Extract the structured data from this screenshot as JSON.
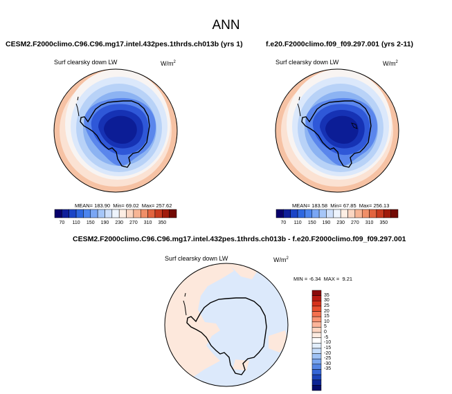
{
  "title": "ANN",
  "panels": [
    {
      "case": "CESM2.F2000climo.C96.C96.mg17.intel.432pes.1thrds.ch013b (yrs 1)",
      "variable": "Surf clearsky down LW",
      "units_base": "W/m",
      "units_exp": "2",
      "stats": {
        "mean": "183.90",
        "min": "69.02",
        "max": "257.62"
      }
    },
    {
      "case": "f.e20.F2000climo.f09_f09.297.001 (yrs 2-11)",
      "variable": "Surf clearsky down LW",
      "units_base": "W/m",
      "units_exp": "2",
      "stats": {
        "mean": "183.58",
        "min": "67.85",
        "max": "256.13"
      }
    },
    {
      "case": "CESM2.F2000climo.C96.C96.mg17.intel.432pes.1thrds.ch013b - f.e20.F2000climo.f09_f09.297.001",
      "variable": "Surf clearsky down LW",
      "units_base": "W/m",
      "units_exp": "2",
      "stats": {
        "min": "-6.34",
        "max": "9.21"
      }
    }
  ],
  "labels": {
    "mean": "MEAN=",
    "min": "Min=",
    "max": "Max=",
    "MIN": "MIN =",
    "MAX": "MAX ="
  },
  "abs_colorbar": {
    "ticks": [
      "70",
      "110",
      "150",
      "190",
      "230",
      "270",
      "310",
      "350"
    ],
    "colors": [
      "#08006b",
      "#0f1f9a",
      "#1a44c6",
      "#2e67e0",
      "#4d85ee",
      "#7aa6f4",
      "#a6c6f8",
      "#cfe0fb",
      "#eef4fd",
      "#fdeee4",
      "#fbd6c2",
      "#f7b595",
      "#f08f68",
      "#e2643f",
      "#c83b1f",
      "#a01b0b",
      "#720a04"
    ]
  },
  "diff_colorbar": {
    "ticks": [
      "35",
      "30",
      "25",
      "20",
      "15",
      "10",
      "5",
      "0",
      "-5",
      "-10",
      "-15",
      "-20",
      "-25",
      "-30",
      "-35"
    ],
    "colors": [
      "#8a0a0a",
      "#b81a12",
      "#d6321b",
      "#ea5030",
      "#f4714f",
      "#f99473",
      "#fcb59a",
      "#fdd5c1",
      "#fdebe0",
      "#ffffff",
      "#e2eefc",
      "#c5dcfa",
      "#9fc2f5",
      "#79a5ef",
      "#5586e5",
      "#3566d6",
      "#1c44b9",
      "#0c2494",
      "#040c6a"
    ]
  },
  "colors": {
    "continent_outline": "#000000",
    "diff_ocean": "#dce9fb",
    "diff_land": "#fde8dc"
  }
}
